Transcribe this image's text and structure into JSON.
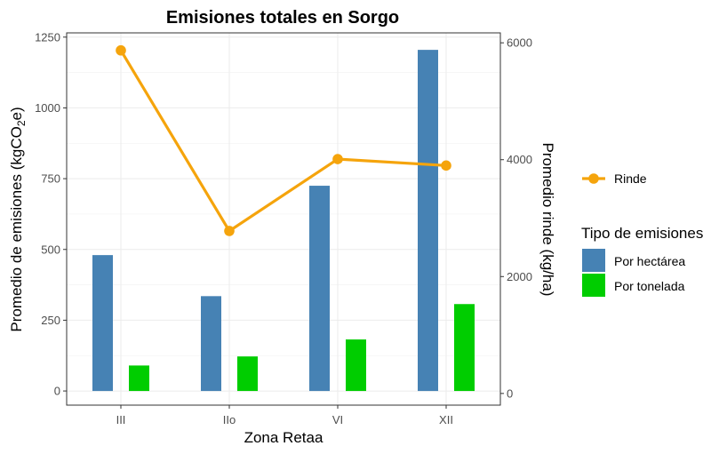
{
  "chart_data": {
    "type": "bar",
    "title": "Emisiones totales en Sorgo",
    "xlabel": "Zona Retaa",
    "ylabel": "Promedio de emisiones (kgCO2e)",
    "ylabel_parts": {
      "main": "Promedio de emisiones (kgCO",
      "sub": "2",
      "tail": "e)"
    },
    "y2label": "Promedio rinde (kg/ha)",
    "categories": [
      "III",
      "IIo",
      "VI",
      "XII"
    ],
    "ylim": [
      -50,
      1265
    ],
    "y_ticks": [
      0,
      250,
      500,
      750,
      1000,
      1250
    ],
    "y_tick_labels": [
      "0",
      "250",
      "500",
      "750",
      "1000",
      "1250"
    ],
    "y2lim": [
      -200,
      6170
    ],
    "y2_ticks": [
      0,
      2000,
      4000,
      6000
    ],
    "y2_tick_labels": [
      "0",
      "2000",
      "4000",
      "6000"
    ],
    "grid": true,
    "legend_position": "right",
    "series": [
      {
        "name": "Por hectárea",
        "kind": "bar",
        "color": "#4682b4",
        "values": [
          480,
          335,
          725,
          1205
        ]
      },
      {
        "name": "Por tonelada",
        "kind": "bar",
        "color": "#00cd00",
        "values": [
          90,
          122,
          182,
          307
        ]
      },
      {
        "name": "Rinde",
        "kind": "line",
        "axis": "secondary",
        "color": "#f5a40c",
        "values": [
          5870,
          2780,
          4010,
          3900
        ]
      }
    ],
    "legend": {
      "line_entry": "Rinde",
      "group_title": "Tipo de emisiones",
      "bar_entries": [
        "Por hectárea",
        "Por tonelada"
      ]
    }
  }
}
